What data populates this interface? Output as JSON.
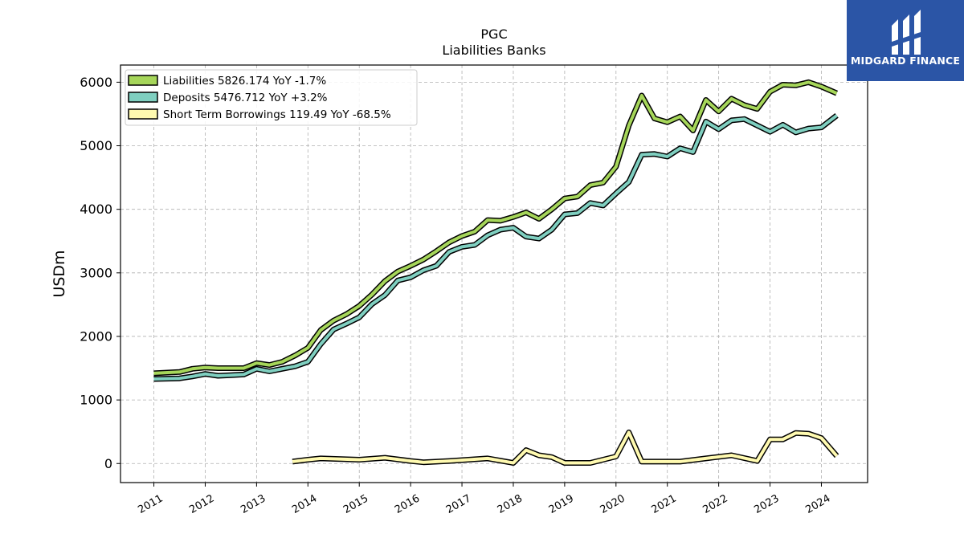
{
  "brand": {
    "name": "MIDGARD FINANCE",
    "bg_color": "#2b55a6"
  },
  "chart_data": {
    "type": "line",
    "title": "PGC",
    "subtitle": "Liabilities Banks",
    "xlabel": "",
    "ylabel": "USDm",
    "xlim": [
      2010.35,
      2024.9
    ],
    "ylim": [
      -300,
      6270
    ],
    "x_ticks": [
      2011,
      2012,
      2013,
      2014,
      2015,
      2016,
      2017,
      2018,
      2019,
      2020,
      2021,
      2022,
      2023,
      2024
    ],
    "y_ticks": [
      0,
      1000,
      2000,
      3000,
      4000,
      5000,
      6000
    ],
    "grid": true,
    "legend_position": "top-left",
    "series": [
      {
        "name": "Liabilities  5826.174 YoY -1.7%",
        "color": "#a6d65a",
        "x": [
          2011.0,
          2011.5,
          2011.75,
          2012.0,
          2012.25,
          2012.5,
          2012.75,
          2013.0,
          2013.25,
          2013.5,
          2013.75,
          2014.0,
          2014.25,
          2014.5,
          2014.75,
          2015.0,
          2015.25,
          2015.5,
          2015.75,
          2016.0,
          2016.25,
          2016.5,
          2016.75,
          2017.0,
          2017.25,
          2017.5,
          2017.75,
          2018.0,
          2018.25,
          2018.5,
          2018.75,
          2019.0,
          2019.25,
          2019.5,
          2019.75,
          2020.0,
          2020.25,
          2020.5,
          2020.75,
          2021.0,
          2021.25,
          2021.5,
          2021.75,
          2022.0,
          2022.25,
          2022.5,
          2022.75,
          2023.0,
          2023.25,
          2023.5,
          2023.75,
          2024.0,
          2024.3
        ],
        "values": [
          1420,
          1440,
          1490,
          1510,
          1500,
          1500,
          1500,
          1580,
          1550,
          1600,
          1700,
          1820,
          2100,
          2250,
          2350,
          2480,
          2660,
          2870,
          3020,
          3110,
          3210,
          3340,
          3480,
          3580,
          3650,
          3830,
          3820,
          3880,
          3950,
          3850,
          4000,
          4170,
          4200,
          4380,
          4420,
          4670,
          5320,
          5790,
          5430,
          5370,
          5460,
          5240,
          5720,
          5540,
          5740,
          5640,
          5580,
          5850,
          5960,
          5950,
          6000,
          5930,
          5826
        ]
      },
      {
        "name": "Deposits  5476.712 YoY +3.2%",
        "color": "#7fcfc0",
        "x": [
          2011.0,
          2011.5,
          2011.75,
          2012.0,
          2012.25,
          2012.5,
          2012.75,
          2013.0,
          2013.25,
          2013.5,
          2013.75,
          2014.0,
          2014.25,
          2014.5,
          2014.75,
          2015.0,
          2015.25,
          2015.5,
          2015.75,
          2016.0,
          2016.25,
          2016.5,
          2016.75,
          2017.0,
          2017.25,
          2017.5,
          2017.75,
          2018.0,
          2018.25,
          2018.5,
          2018.75,
          2019.0,
          2019.25,
          2019.5,
          2019.75,
          2020.0,
          2020.25,
          2020.5,
          2020.75,
          2021.0,
          2021.25,
          2021.5,
          2021.75,
          2022.0,
          2022.25,
          2022.5,
          2022.75,
          2023.0,
          2023.25,
          2023.5,
          2023.75,
          2024.0,
          2024.3
        ],
        "values": [
          1330,
          1340,
          1370,
          1410,
          1380,
          1390,
          1400,
          1490,
          1450,
          1490,
          1530,
          1600,
          1880,
          2110,
          2200,
          2300,
          2510,
          2650,
          2880,
          2930,
          3040,
          3110,
          3330,
          3410,
          3440,
          3590,
          3680,
          3710,
          3570,
          3540,
          3680,
          3920,
          3940,
          4100,
          4060,
          4250,
          4430,
          4860,
          4870,
          4830,
          4960,
          4900,
          5380,
          5260,
          5400,
          5420,
          5320,
          5220,
          5330,
          5210,
          5270,
          5290,
          5476
        ]
      },
      {
        "name": "Short Term Borrowings  119.49 YoY -68.5%",
        "color": "#fffab0",
        "x": [
          2013.7,
          2014.0,
          2014.25,
          2015.0,
          2015.5,
          2016.0,
          2016.25,
          2016.75,
          2017.5,
          2018.0,
          2018.25,
          2018.5,
          2018.75,
          2019.0,
          2019.25,
          2019.5,
          2019.75,
          2020.0,
          2020.25,
          2020.5,
          2020.75,
          2021.0,
          2021.25,
          2021.75,
          2022.25,
          2022.75,
          2023.0,
          2023.25,
          2023.5,
          2023.75,
          2024.0,
          2024.3
        ],
        "values": [
          30,
          60,
          80,
          60,
          90,
          40,
          20,
          40,
          80,
          10,
          210,
          130,
          100,
          10,
          10,
          10,
          60,
          110,
          490,
          30,
          30,
          30,
          30,
          80,
          130,
          40,
          380,
          380,
          480,
          470,
          400,
          119
        ]
      }
    ]
  }
}
